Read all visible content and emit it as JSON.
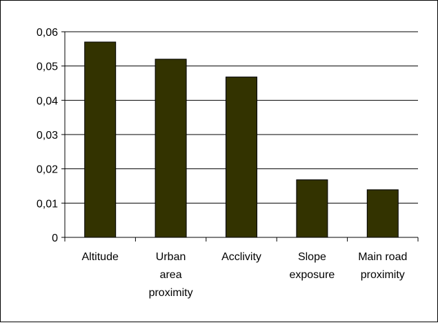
{
  "chart_data": {
    "type": "bar",
    "title": "",
    "xlabel": "",
    "ylabel": "",
    "categories": [
      [
        "Altitude"
      ],
      [
        "Urban",
        "area",
        "proximity"
      ],
      [
        "Acclivity"
      ],
      [
        "Slope",
        "exposure"
      ],
      [
        "Main road",
        "proximity"
      ]
    ],
    "values": [
      0.057,
      0.052,
      0.0468,
      0.0168,
      0.0139
    ],
    "ylim": [
      0,
      0.06
    ],
    "yticks": [
      0,
      0.01,
      0.02,
      0.03,
      0.04,
      0.05,
      0.06
    ],
    "ytick_labels": [
      "0",
      "0,01",
      "0,02",
      "0,03",
      "0,04",
      "0,05",
      "0,06"
    ],
    "grid": true,
    "legend": false,
    "bar_color": "#333300",
    "bar_edge_color": "#000000",
    "grid_color": "#000000"
  }
}
